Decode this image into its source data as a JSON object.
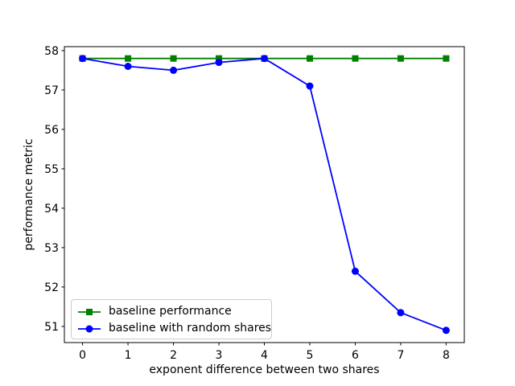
{
  "figure": {
    "background": "#ffffff"
  },
  "chart_data": {
    "type": "line",
    "title": "",
    "xlabel": "exponent difference between two shares",
    "ylabel": "performance metric",
    "x": [
      0,
      1,
      2,
      3,
      4,
      5,
      6,
      7,
      8
    ],
    "series": [
      {
        "name": "baseline performance",
        "color": "#008000",
        "marker": "square",
        "values": [
          57.8,
          57.8,
          57.8,
          57.8,
          57.8,
          57.8,
          57.8,
          57.8,
          57.8
        ]
      },
      {
        "name": "baseline with random shares",
        "color": "#0000ff",
        "marker": "circle",
        "values": [
          57.8,
          57.6,
          57.5,
          57.7,
          57.8,
          57.1,
          52.4,
          51.35,
          50.9
        ]
      }
    ],
    "xticks": [
      0,
      1,
      2,
      3,
      4,
      5,
      6,
      7,
      8
    ],
    "yticks": [
      51,
      52,
      53,
      54,
      55,
      56,
      57,
      58
    ],
    "xlim": [
      -0.4,
      8.4
    ],
    "ylim": [
      50.59,
      58.1
    ],
    "grid": false,
    "legend_position": "lower left"
  }
}
